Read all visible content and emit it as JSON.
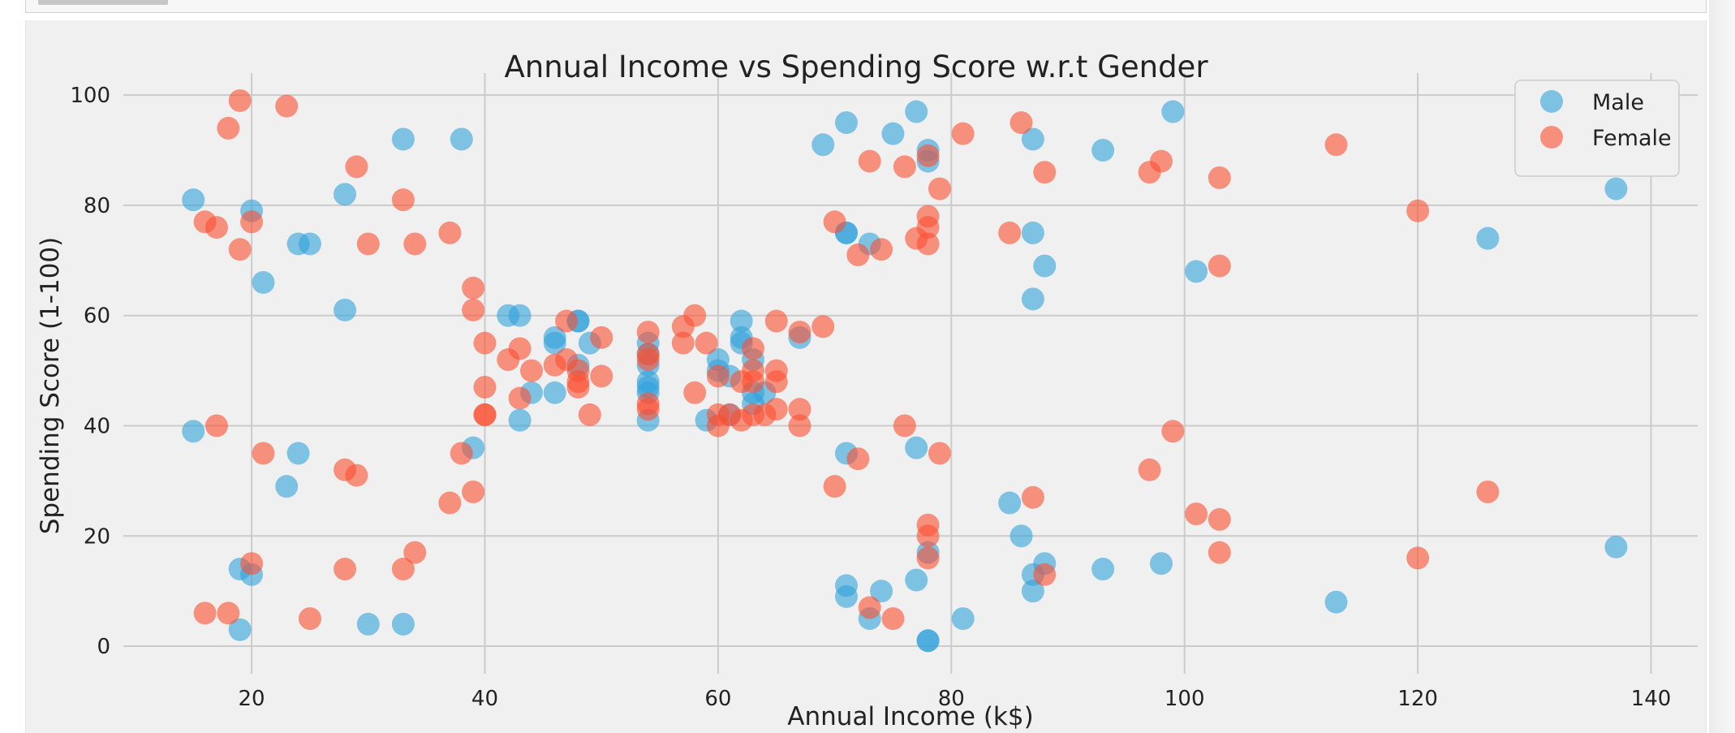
{
  "chart_data": {
    "type": "scatter",
    "title": "Annual Income vs Spending Score w.r.t Gender",
    "xlabel": "Annual Income (k$)",
    "ylabel": "Spending Score (1-100)",
    "xlim": [
      9,
      144
    ],
    "ylim": [
      -5,
      104
    ],
    "xticks": [
      20,
      40,
      60,
      80,
      100,
      120,
      140
    ],
    "yticks": [
      0,
      20,
      40,
      60,
      80,
      100
    ],
    "grid": true,
    "legend_position": "top-right",
    "series": [
      {
        "name": "Male",
        "color": "#30a2da",
        "points": [
          [
            15,
            39
          ],
          [
            15,
            81
          ],
          [
            19,
            3
          ],
          [
            19,
            14
          ],
          [
            20,
            13
          ],
          [
            20,
            79
          ],
          [
            21,
            66
          ],
          [
            23,
            29
          ],
          [
            24,
            35
          ],
          [
            24,
            73
          ],
          [
            25,
            73
          ],
          [
            28,
            61
          ],
          [
            28,
            82
          ],
          [
            30,
            4
          ],
          [
            33,
            4
          ],
          [
            33,
            92
          ],
          [
            38,
            92
          ],
          [
            39,
            36
          ],
          [
            42,
            60
          ],
          [
            43,
            60
          ],
          [
            43,
            41
          ],
          [
            44,
            46
          ],
          [
            46,
            46
          ],
          [
            46,
            55
          ],
          [
            46,
            56
          ],
          [
            48,
            51
          ],
          [
            48,
            59
          ],
          [
            48,
            59
          ],
          [
            49,
            55
          ],
          [
            54,
            41
          ],
          [
            54,
            46
          ],
          [
            54,
            47
          ],
          [
            54,
            48
          ],
          [
            54,
            51
          ],
          [
            54,
            53
          ],
          [
            54,
            55
          ],
          [
            59,
            41
          ],
          [
            60,
            52
          ],
          [
            60,
            50
          ],
          [
            61,
            42
          ],
          [
            61,
            49
          ],
          [
            62,
            55
          ],
          [
            62,
            56
          ],
          [
            62,
            59
          ],
          [
            63,
            46
          ],
          [
            63,
            44
          ],
          [
            63,
            52
          ],
          [
            64,
            46
          ],
          [
            67,
            56
          ],
          [
            69,
            91
          ],
          [
            71,
            11
          ],
          [
            71,
            9
          ],
          [
            71,
            75
          ],
          [
            71,
            75
          ],
          [
            71,
            95
          ],
          [
            71,
            35
          ],
          [
            73,
            5
          ],
          [
            73,
            73
          ],
          [
            74,
            10
          ],
          [
            75,
            93
          ],
          [
            77,
            12
          ],
          [
            77,
            97
          ],
          [
            77,
            36
          ],
          [
            78,
            1
          ],
          [
            78,
            1
          ],
          [
            78,
            17
          ],
          [
            78,
            90
          ],
          [
            78,
            88
          ],
          [
            81,
            5
          ],
          [
            85,
            26
          ],
          [
            86,
            20
          ],
          [
            87,
            10
          ],
          [
            87,
            13
          ],
          [
            87,
            92
          ],
          [
            87,
            63
          ],
          [
            87,
            75
          ],
          [
            88,
            15
          ],
          [
            88,
            69
          ],
          [
            93,
            14
          ],
          [
            93,
            90
          ],
          [
            98,
            15
          ],
          [
            99,
            97
          ],
          [
            101,
            68
          ],
          [
            113,
            8
          ],
          [
            126,
            74
          ],
          [
            137,
            18
          ],
          [
            137,
            83
          ]
        ]
      },
      {
        "name": "Female",
        "color": "#fc4f30",
        "points": [
          [
            16,
            6
          ],
          [
            16,
            77
          ],
          [
            17,
            40
          ],
          [
            17,
            76
          ],
          [
            18,
            6
          ],
          [
            18,
            94
          ],
          [
            19,
            72
          ],
          [
            19,
            99
          ],
          [
            20,
            15
          ],
          [
            20,
            77
          ],
          [
            21,
            35
          ],
          [
            23,
            98
          ],
          [
            25,
            5
          ],
          [
            28,
            14
          ],
          [
            28,
            32
          ],
          [
            29,
            31
          ],
          [
            29,
            87
          ],
          [
            30,
            73
          ],
          [
            33,
            14
          ],
          [
            33,
            81
          ],
          [
            34,
            17
          ],
          [
            34,
            73
          ],
          [
            37,
            26
          ],
          [
            37,
            75
          ],
          [
            38,
            35
          ],
          [
            39,
            28
          ],
          [
            39,
            61
          ],
          [
            39,
            65
          ],
          [
            40,
            47
          ],
          [
            40,
            42
          ],
          [
            40,
            42
          ],
          [
            40,
            55
          ],
          [
            42,
            52
          ],
          [
            43,
            45
          ],
          [
            43,
            54
          ],
          [
            44,
            50
          ],
          [
            46,
            51
          ],
          [
            47,
            52
          ],
          [
            47,
            59
          ],
          [
            48,
            50
          ],
          [
            48,
            48
          ],
          [
            48,
            47
          ],
          [
            49,
            42
          ],
          [
            50,
            49
          ],
          [
            50,
            56
          ],
          [
            54,
            43
          ],
          [
            54,
            44
          ],
          [
            54,
            52
          ],
          [
            54,
            53
          ],
          [
            54,
            57
          ],
          [
            57,
            58
          ],
          [
            57,
            55
          ],
          [
            58,
            60
          ],
          [
            58,
            46
          ],
          [
            59,
            55
          ],
          [
            60,
            49
          ],
          [
            60,
            40
          ],
          [
            60,
            42
          ],
          [
            61,
            42
          ],
          [
            62,
            48
          ],
          [
            62,
            41
          ],
          [
            63,
            50
          ],
          [
            63,
            54
          ],
          [
            63,
            42
          ],
          [
            63,
            48
          ],
          [
            64,
            42
          ],
          [
            65,
            43
          ],
          [
            65,
            48
          ],
          [
            65,
            50
          ],
          [
            65,
            59
          ],
          [
            67,
            40
          ],
          [
            67,
            43
          ],
          [
            67,
            57
          ],
          [
            69,
            58
          ],
          [
            70,
            29
          ],
          [
            70,
            77
          ],
          [
            72,
            34
          ],
          [
            72,
            71
          ],
          [
            73,
            7
          ],
          [
            73,
            88
          ],
          [
            74,
            72
          ],
          [
            75,
            5
          ],
          [
            76,
            40
          ],
          [
            76,
            87
          ],
          [
            77,
            74
          ],
          [
            78,
            22
          ],
          [
            78,
            20
          ],
          [
            78,
            16
          ],
          [
            78,
            73
          ],
          [
            78,
            76
          ],
          [
            78,
            78
          ],
          [
            78,
            89
          ],
          [
            79,
            35
          ],
          [
            79,
            83
          ],
          [
            81,
            93
          ],
          [
            85,
            75
          ],
          [
            86,
            95
          ],
          [
            87,
            27
          ],
          [
            88,
            13
          ],
          [
            88,
            86
          ],
          [
            97,
            32
          ],
          [
            97,
            86
          ],
          [
            98,
            88
          ],
          [
            99,
            39
          ],
          [
            101,
            24
          ],
          [
            103,
            17
          ],
          [
            103,
            23
          ],
          [
            103,
            69
          ],
          [
            103,
            85
          ],
          [
            113,
            91
          ],
          [
            120,
            16
          ],
          [
            120,
            79
          ],
          [
            126,
            28
          ]
        ]
      }
    ]
  }
}
